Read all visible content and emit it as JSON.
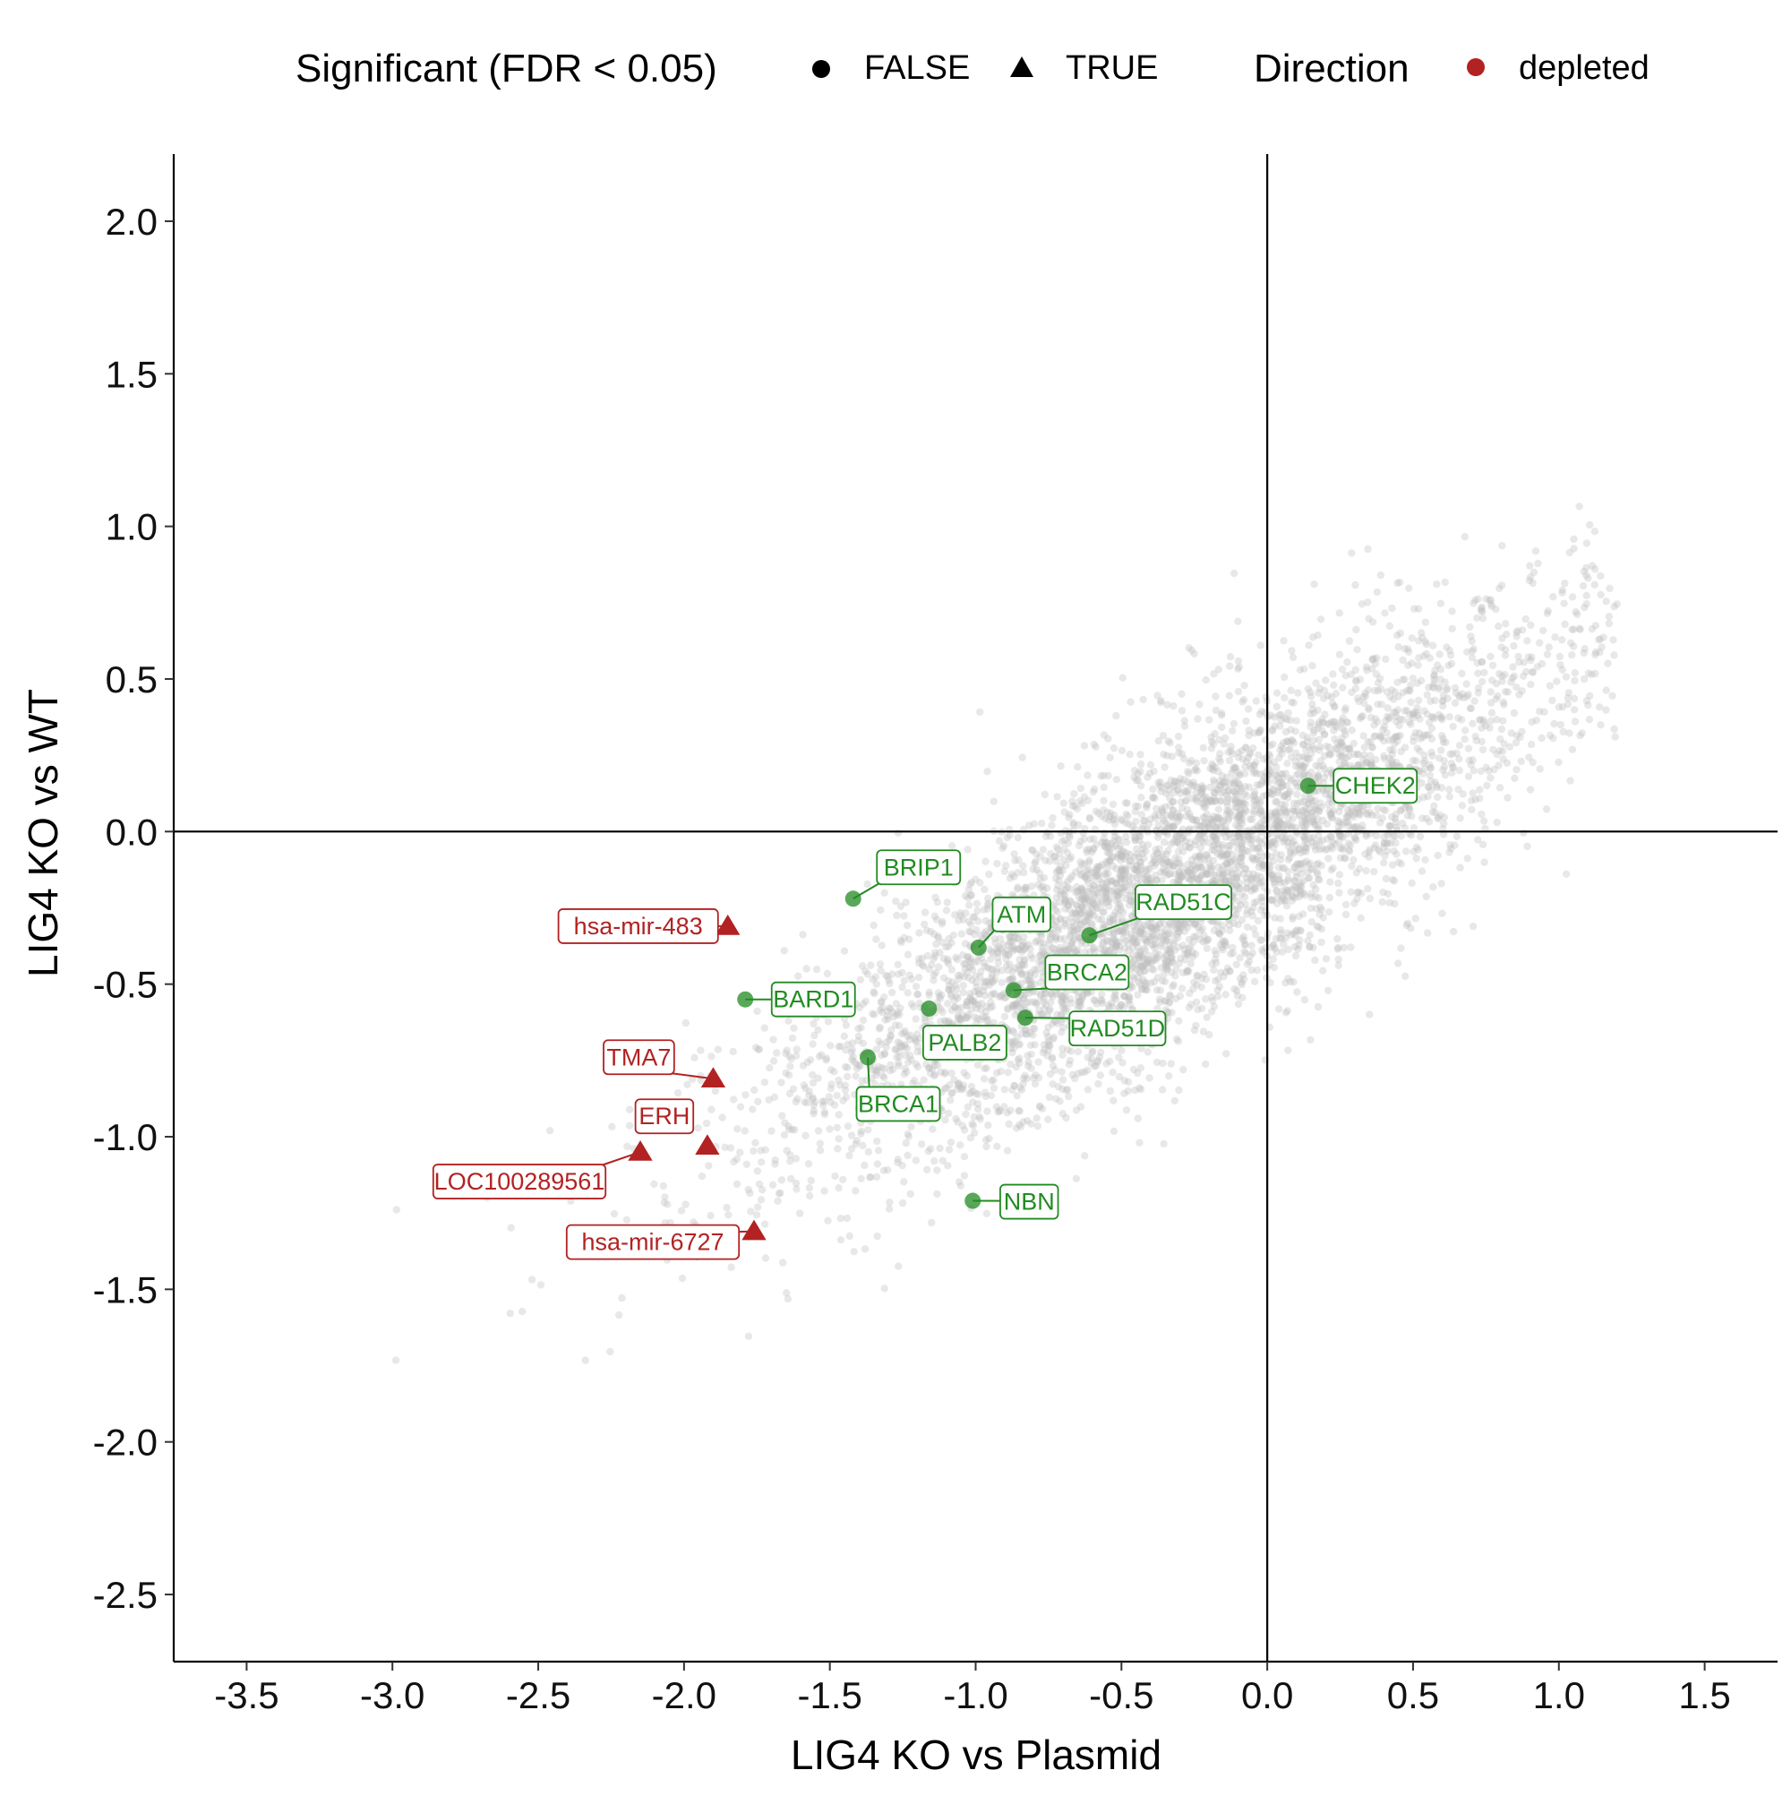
{
  "chart_data": {
    "type": "scatter",
    "title": "",
    "xlabel": "LIG4 KO vs Plasmid",
    "ylabel": "LIG4 KO vs WT",
    "xlim": [
      -3.75,
      1.75
    ],
    "ylim": [
      -2.72,
      2.22
    ],
    "x_ticks": [
      -3.5,
      -3.0,
      -2.5,
      -2.0,
      -1.5,
      -1.0,
      -0.5,
      0.0,
      0.5,
      1.0,
      1.5
    ],
    "x_tick_labels": [
      "-3.5",
      "-3.0",
      "-2.5",
      "-2.0",
      "-1.5",
      "-1.0",
      "-0.5",
      "0.0",
      "0.5",
      "1.0",
      "1.5"
    ],
    "y_ticks": [
      2.0,
      1.5,
      1.0,
      0.5,
      0.0,
      -0.5,
      -1.0,
      -1.5,
      -2.0,
      -2.5
    ],
    "y_tick_labels": [
      "2.0",
      "1.5",
      "1.0",
      "0.5",
      "0.0",
      "-0.5",
      "-1.0",
      "-1.5",
      "-2.0",
      "-2.5"
    ],
    "grid": false,
    "reference_lines": {
      "x": 0,
      "y": 0
    },
    "legend": {
      "position": "top",
      "shape_title": "Significant (FDR < 0.05)",
      "shape_entries": [
        {
          "label": "FALSE",
          "shape": "circle"
        },
        {
          "label": "TRUE",
          "shape": "triangle"
        }
      ],
      "color_title": "Direction",
      "color_entries": [
        {
          "label": "depleted",
          "color": "#B22222"
        }
      ]
    },
    "background_points": {
      "description": "thousands of non-highlighted genes, grey, semi-transparent",
      "color": "#BEBEBE",
      "trend_slope": 0.55,
      "trend_center": [
        -0.35,
        -0.2
      ]
    },
    "highlighted_series": [
      {
        "name": "green",
        "color": "#228B22",
        "shape": "circle",
        "points": [
          {
            "label": "CHEK2",
            "x": 0.14,
            "y": 0.15
          },
          {
            "label": "BRIP1",
            "x": -1.42,
            "y": -0.22
          },
          {
            "label": "ATM",
            "x": -0.99,
            "y": -0.38
          },
          {
            "label": "RAD51C",
            "x": -0.61,
            "y": -0.34
          },
          {
            "label": "BRCA2",
            "x": -0.87,
            "y": -0.52
          },
          {
            "label": "BARD1",
            "x": -1.79,
            "y": -0.55
          },
          {
            "label": "PALB2",
            "x": -1.16,
            "y": -0.58
          },
          {
            "label": "RAD51D",
            "x": -0.83,
            "y": -0.61
          },
          {
            "label": "BRCA1",
            "x": -1.37,
            "y": -0.74
          },
          {
            "label": "NBN",
            "x": -1.01,
            "y": -1.21
          }
        ]
      },
      {
        "name": "depleted",
        "color": "#B22222",
        "shape": "triangle",
        "points": [
          {
            "label": "hsa-mir-483",
            "x": -1.85,
            "y": -0.31
          },
          {
            "label": "TMA7",
            "x": -1.9,
            "y": -0.81
          },
          {
            "label": "ERH",
            "x": -1.92,
            "y": -1.03
          },
          {
            "label": "LOC100289561",
            "x": -2.15,
            "y": -1.05
          },
          {
            "label": "hsa-mir-6727",
            "x": -1.76,
            "y": -1.31
          }
        ]
      }
    ]
  }
}
